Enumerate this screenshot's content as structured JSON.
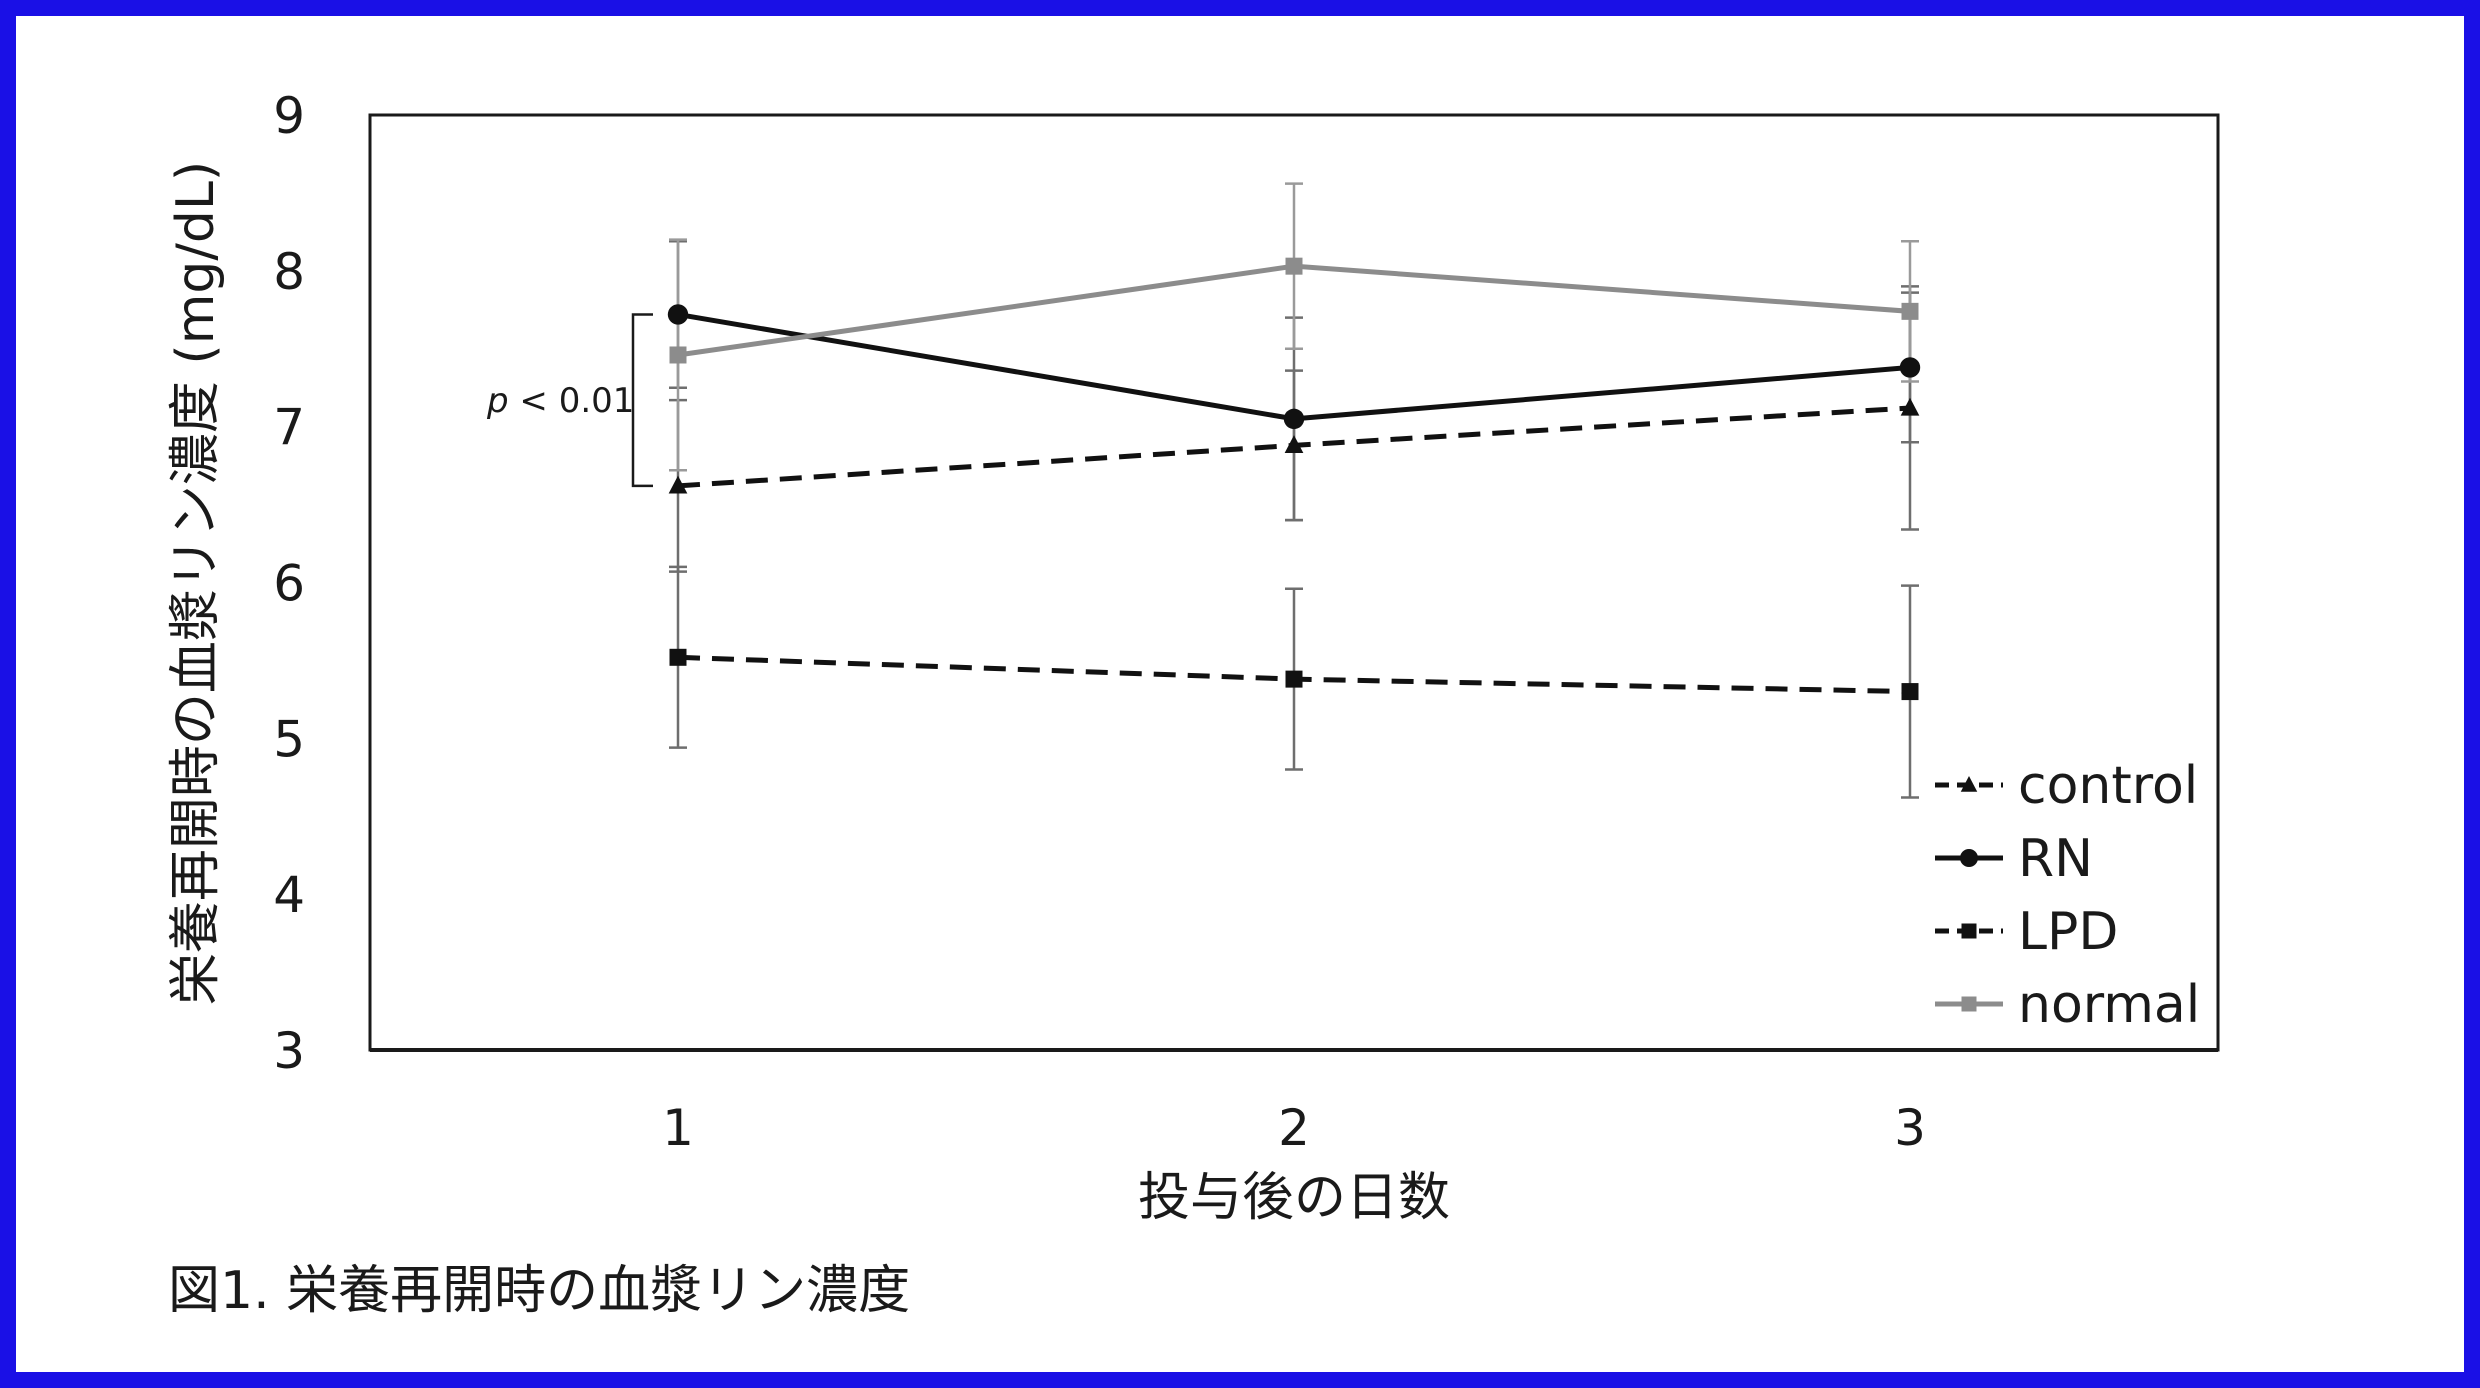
{
  "frame": {
    "border_color": "#1a10e6"
  },
  "chart_data": {
    "type": "line",
    "caption": "図1. 栄養再開時の血漿リン濃度",
    "xlabel": "投与後の日数",
    "ylabel": "栄養再開時の血漿リン濃度 (mg/dL)",
    "x": [
      1,
      2,
      3
    ],
    "x_tick_labels": [
      "1",
      "2",
      "3"
    ],
    "ylim": [
      3,
      9
    ],
    "y_ticks": [
      3,
      4,
      5,
      6,
      7,
      8,
      9
    ],
    "grid": false,
    "legend_position": "bottom-right",
    "annotation": {
      "label_italic": "p",
      "label_rest": " < 0.01"
    },
    "series": [
      {
        "name": "control",
        "values": [
          6.62,
          6.88,
          7.12
        ],
        "error": [
          0.55,
          0.48,
          0.78
        ],
        "marker": "triangle",
        "dash": "dashed",
        "color": "#111111"
      },
      {
        "name": "RN",
        "values": [
          7.72,
          7.05,
          7.38
        ],
        "error": [
          0.47,
          0.65,
          0.48
        ],
        "marker": "circle",
        "dash": "solid",
        "color": "#111111"
      },
      {
        "name": "LPD",
        "values": [
          5.52,
          5.38,
          5.3
        ],
        "error": [
          0.58,
          0.58,
          0.68
        ],
        "marker": "square",
        "dash": "dashed",
        "color": "#111111"
      },
      {
        "name": "normal",
        "values": [
          7.46,
          8.03,
          7.74
        ],
        "error": [
          0.74,
          0.53,
          0.45
        ],
        "marker": "square",
        "dash": "solid",
        "color": "#8c8c8c"
      }
    ]
  }
}
